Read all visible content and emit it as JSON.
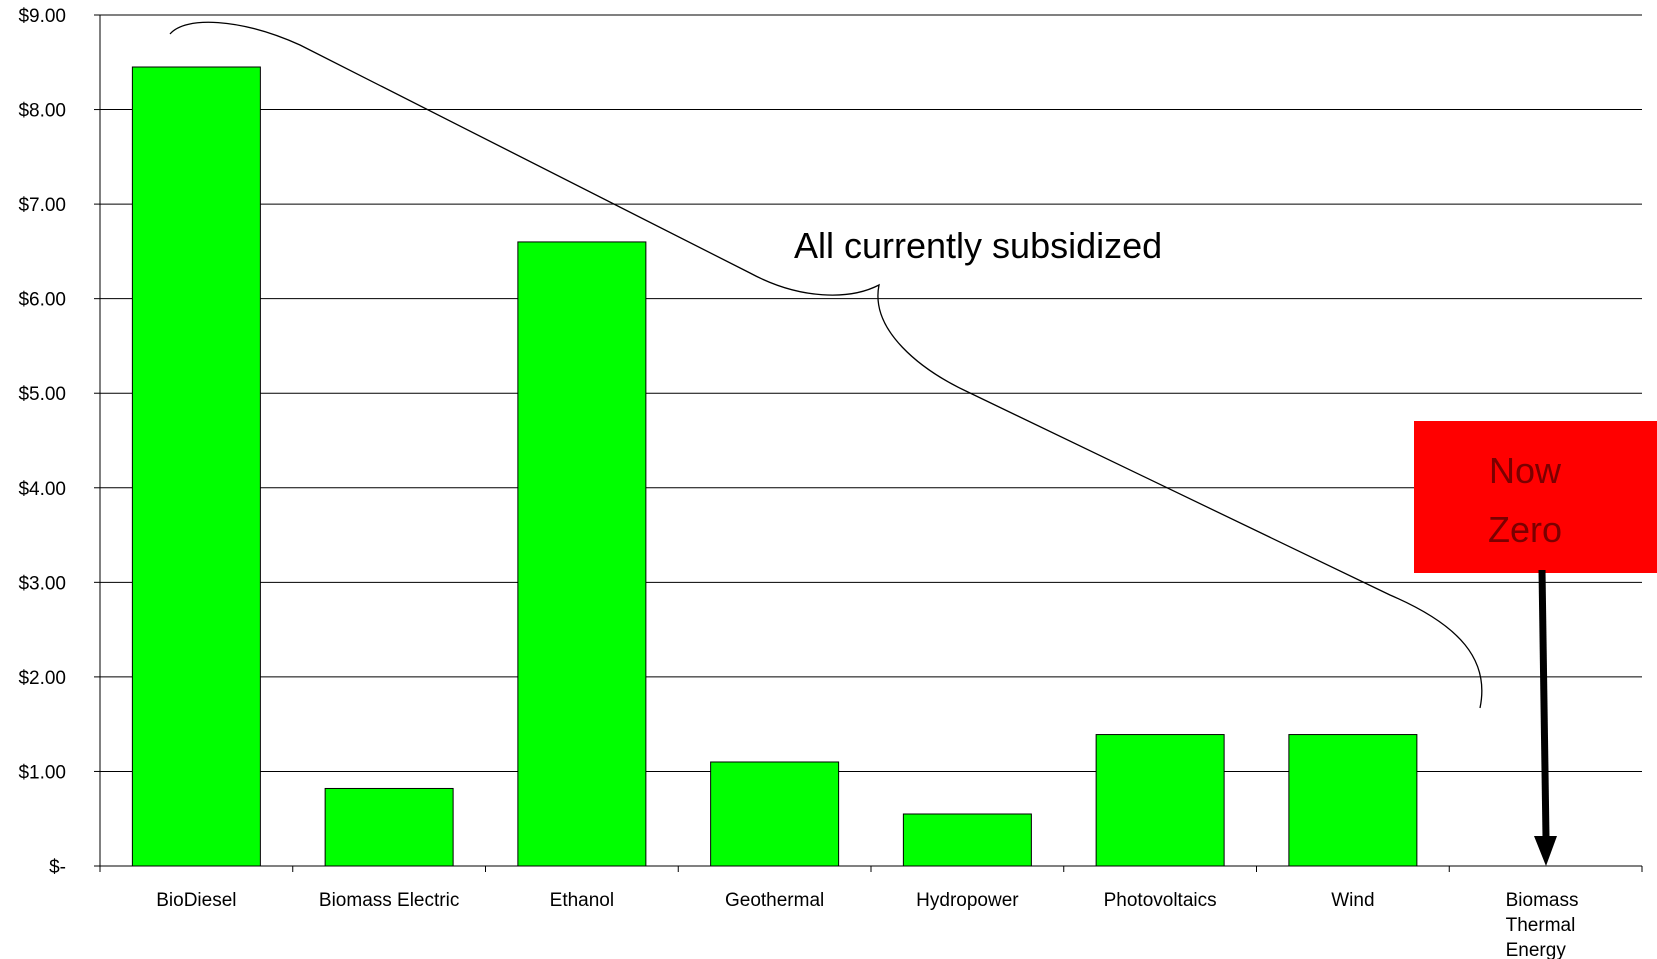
{
  "chart_data": {
    "type": "bar",
    "title": "",
    "xlabel": "",
    "ylabel": "",
    "categories": [
      [
        "BioDiesel"
      ],
      [
        "Biomass Electric"
      ],
      [
        "Ethanol"
      ],
      [
        "Geothermal"
      ],
      [
        "Hydropower"
      ],
      [
        "Photovoltaics"
      ],
      [
        "Wind"
      ],
      [
        "Biomass",
        "Thermal",
        "Energy"
      ]
    ],
    "values": [
      8.45,
      0.82,
      6.6,
      1.1,
      0.55,
      1.39,
      1.39,
      0
    ],
    "ylim": [
      0,
      9
    ],
    "yticks": [
      {
        "value": 0,
        "label": "$-"
      },
      {
        "value": 1,
        "label": "$1.00"
      },
      {
        "value": 2,
        "label": "$2.00"
      },
      {
        "value": 3,
        "label": "$3.00"
      },
      {
        "value": 4,
        "label": "$4.00"
      },
      {
        "value": 5,
        "label": "$5.00"
      },
      {
        "value": 6,
        "label": "$6.00"
      },
      {
        "value": 7,
        "label": "$7.00"
      },
      {
        "value": 8,
        "label": "$8.00"
      },
      {
        "value": 9,
        "label": "$9.00"
      }
    ],
    "grid": true,
    "bar_color": "#00ff00",
    "annotations": {
      "brace_label": "All currently subsidized",
      "callout_lines": [
        "Now",
        "Zero"
      ],
      "callout_color": "#ff0000",
      "callout_text_color": "#7a0000"
    }
  }
}
